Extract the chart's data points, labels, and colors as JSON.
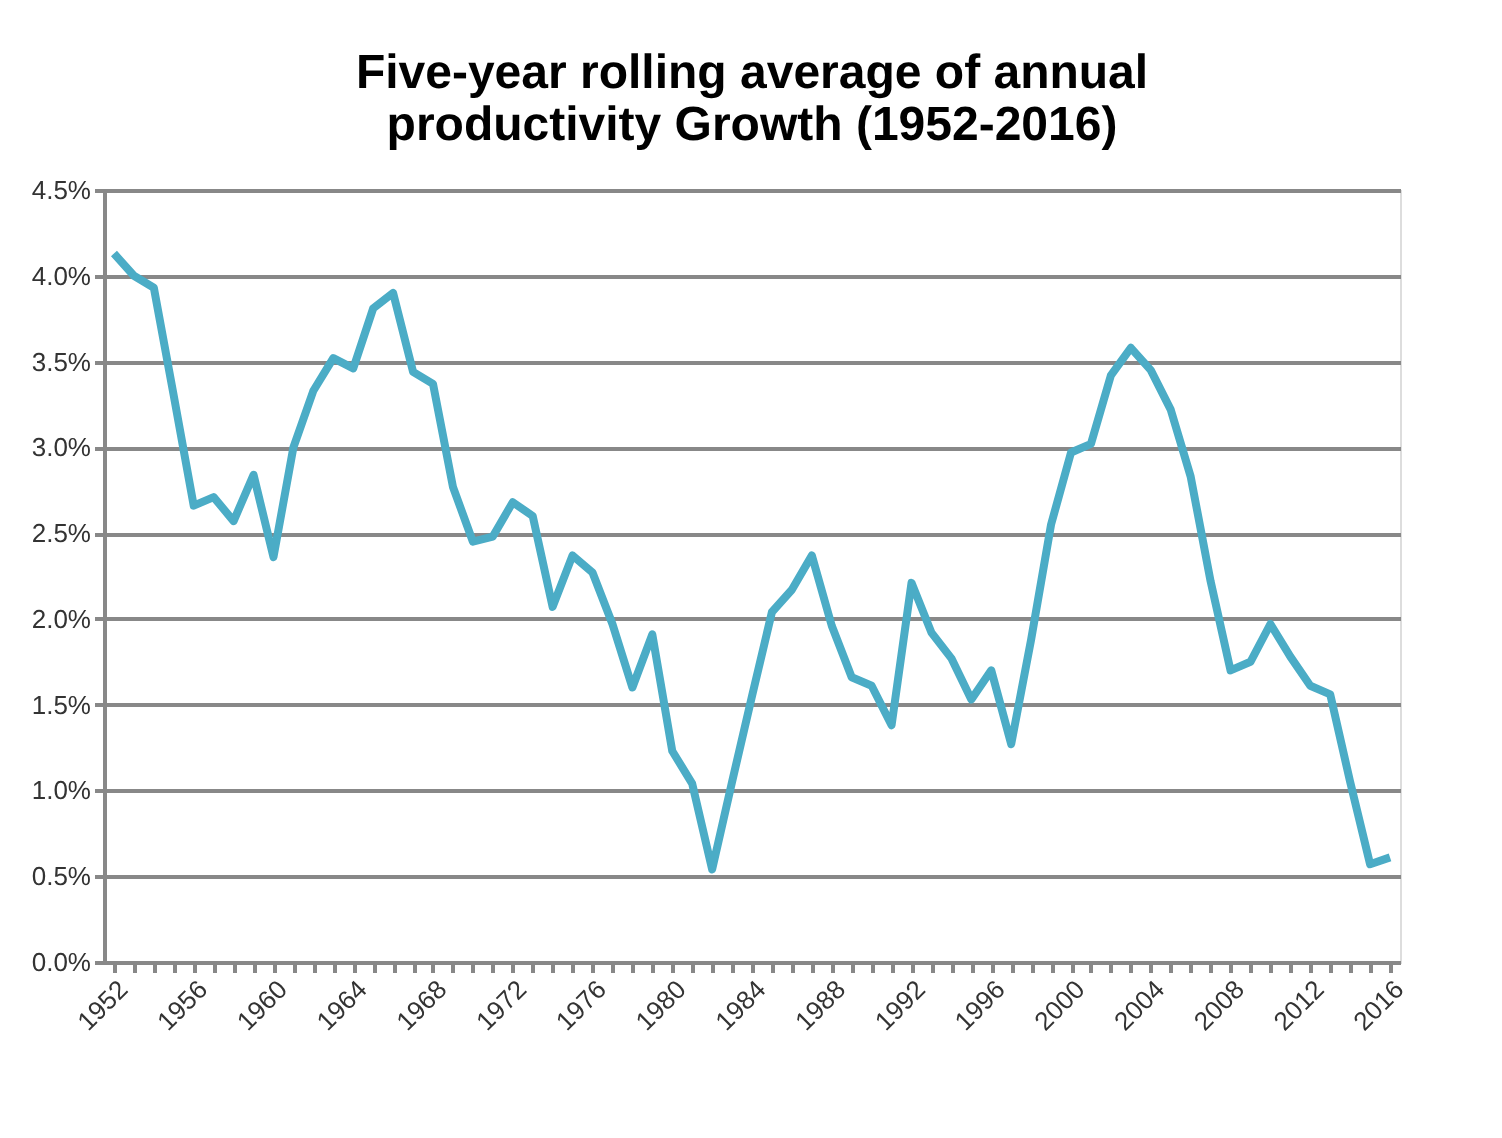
{
  "chart_data": {
    "type": "line",
    "title": "Five-year rolling average of annual productivity Growth (1952-2016)",
    "x": [
      1952,
      1953,
      1954,
      1955,
      1956,
      1957,
      1958,
      1959,
      1960,
      1961,
      1962,
      1963,
      1964,
      1965,
      1966,
      1967,
      1968,
      1969,
      1970,
      1971,
      1972,
      1973,
      1974,
      1975,
      1976,
      1977,
      1978,
      1979,
      1980,
      1981,
      1982,
      1983,
      1984,
      1985,
      1986,
      1987,
      1988,
      1989,
      1990,
      1991,
      1992,
      1993,
      1994,
      1995,
      1996,
      1997,
      1998,
      1999,
      2000,
      2001,
      2002,
      2003,
      2004,
      2005,
      2006,
      2007,
      2008,
      2009,
      2010,
      2011,
      2012,
      2013,
      2014,
      2015,
      2016
    ],
    "series": [
      {
        "color": "#4bacc6",
        "values": [
          4.13,
          4.0,
          3.93,
          3.3,
          2.66,
          2.71,
          2.57,
          2.84,
          2.36,
          3.0,
          3.33,
          3.52,
          3.46,
          3.81,
          3.9,
          3.44,
          3.37,
          2.77,
          2.45,
          2.48,
          2.68,
          2.6,
          2.07,
          2.37,
          2.27,
          1.97,
          1.6,
          1.91,
          1.23,
          1.04,
          0.54,
          1.05,
          1.55,
          2.04,
          2.17,
          2.37,
          1.96,
          1.66,
          1.61,
          1.38,
          2.21,
          1.92,
          1.77,
          1.53,
          1.7,
          1.27,
          1.88,
          2.55,
          2.97,
          3.02,
          3.42,
          3.58,
          3.45,
          3.22,
          2.83,
          2.22,
          1.7,
          1.75,
          1.97,
          1.78,
          1.61,
          1.56,
          1.05,
          0.57,
          0.61
        ]
      }
    ],
    "xlim": [
      1951.5,
      2016.5
    ],
    "xticks": [
      1952,
      {
        "value": 1953,
        "label": null
      },
      {
        "value": 1954,
        "label": null
      },
      {
        "value": 1955,
        "label": null
      },
      1956,
      {
        "value": 1957,
        "label": null
      },
      {
        "value": 1958,
        "label": null
      },
      {
        "value": 1959,
        "label": null
      },
      1960,
      {
        "value": 1961,
        "label": null
      },
      {
        "value": 1962,
        "label": null
      },
      {
        "value": 1963,
        "label": null
      },
      1964,
      {
        "value": 1965,
        "label": null
      },
      {
        "value": 1966,
        "label": null
      },
      {
        "value": 1967,
        "label": null
      },
      1968,
      {
        "value": 1969,
        "label": null
      },
      {
        "value": 1970,
        "label": null
      },
      {
        "value": 1971,
        "label": null
      },
      1972,
      {
        "value": 1973,
        "label": null
      },
      {
        "value": 1974,
        "label": null
      },
      {
        "value": 1975,
        "label": null
      },
      1976,
      {
        "value": 1977,
        "label": null
      },
      {
        "value": 1978,
        "label": null
      },
      {
        "value": 1979,
        "label": null
      },
      1980,
      {
        "value": 1981,
        "label": null
      },
      {
        "value": 1982,
        "label": null
      },
      {
        "value": 1983,
        "label": null
      },
      1984,
      {
        "value": 1985,
        "label": null
      },
      {
        "value": 1986,
        "label": null
      },
      {
        "value": 1987,
        "label": null
      },
      1988,
      {
        "value": 1989,
        "label": null
      },
      {
        "value": 1990,
        "label": null
      },
      {
        "value": 1991,
        "label": null
      },
      1992,
      {
        "value": 1993,
        "label": null
      },
      {
        "value": 1994,
        "label": null
      },
      {
        "value": 1995,
        "label": null
      },
      1996,
      {
        "value": 1997,
        "label": null
      },
      {
        "value": 1998,
        "label": null
      },
      {
        "value": 1999,
        "label": null
      },
      2000,
      {
        "value": 2001,
        "label": null
      },
      {
        "value": 2002,
        "label": null
      },
      {
        "value": 2003,
        "label": null
      },
      2004,
      {
        "value": 2005,
        "label": null
      },
      {
        "value": 2006,
        "label": null
      },
      {
        "value": 2007,
        "label": null
      },
      2008,
      {
        "value": 2009,
        "label": null
      },
      {
        "value": 2010,
        "label": null
      },
      {
        "value": 2011,
        "label": null
      },
      2012,
      {
        "value": 2013,
        "label": null
      },
      {
        "value": 2014,
        "label": null
      },
      {
        "value": 2015,
        "label": null
      },
      2016
    ],
    "ylim": [
      0,
      4.5
    ],
    "yticks": [
      {
        "value": 0,
        "label": "0.0%"
      },
      {
        "value": 0.5,
        "label": "0.5%"
      },
      {
        "value": 1,
        "label": "1.0%"
      },
      {
        "value": 1.5,
        "label": "1.5%"
      },
      {
        "value": 2,
        "label": "2.0%"
      },
      {
        "value": 2.5,
        "label": "2.5%"
      },
      {
        "value": 3,
        "label": "3.0%"
      },
      {
        "value": 3.5,
        "label": "3.5%"
      },
      {
        "value": 4,
        "label": "4.0%"
      },
      {
        "value": 4.5,
        "label": "4.5%"
      }
    ],
    "grid": "y",
    "legend": false,
    "marker": "none",
    "line_style": "solid"
  }
}
